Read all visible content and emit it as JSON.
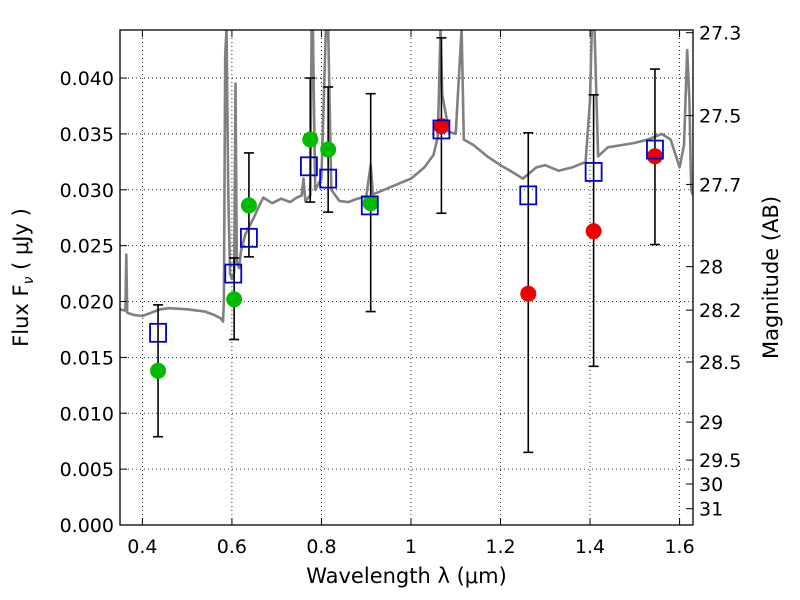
{
  "chart_data": {
    "type": "scatter",
    "xlabel": "Wavelength  λ (μm)",
    "ylabel_left": "Flux  F",
    "ylabel_left_sub": "ν",
    "ylabel_left_unit": "  ( μJy )",
    "ylabel_right": "Magnitude (AB)",
    "xlim": [
      0.35,
      1.63
    ],
    "ylim": [
      0.0,
      0.0443
    ],
    "grid": true,
    "x_ticks": [
      0.4,
      0.6,
      0.8,
      1.0,
      1.2,
      1.4,
      1.6
    ],
    "x_tick_labels": [
      "0.4",
      "0.6",
      "0.8",
      "1",
      "1.2",
      "1.4",
      "1.6"
    ],
    "y_ticks": [
      0.0,
      0.005,
      0.01,
      0.015,
      0.02,
      0.025,
      0.03,
      0.035,
      0.04
    ],
    "y_tick_labels": [
      "0.000",
      "0.005",
      "0.010",
      "0.015",
      "0.020",
      "0.025",
      "0.030",
      "0.035",
      "0.040"
    ],
    "right_ticks": [
      {
        "label": "27.3",
        "flux": 0.04406
      },
      {
        "label": "27.5",
        "flux": 0.03664
      },
      {
        "label": "27.7",
        "flux": 0.03048
      },
      {
        "label": "28",
        "flux": 0.02312
      },
      {
        "label": "28.2",
        "flux": 0.01923
      },
      {
        "label": "28.5",
        "flux": 0.01459
      },
      {
        "label": "29",
        "flux": 0.00921
      },
      {
        "label": "29.5",
        "flux": 0.00581
      },
      {
        "label": "30",
        "flux": 0.00367
      },
      {
        "label": "31",
        "flux": 0.00146
      }
    ],
    "colors": {
      "spectrum": "#808080",
      "model_squares": "#0000cc",
      "green_points": "#00bb00",
      "red_points": "#ee0000",
      "errorbars": "#000000"
    },
    "spectrum": [
      [
        0.35,
        0.0193
      ],
      [
        0.36,
        0.0192
      ],
      [
        0.362,
        0.0192
      ],
      [
        0.364,
        0.0242
      ],
      [
        0.366,
        0.019
      ],
      [
        0.38,
        0.0188
      ],
      [
        0.4,
        0.0187
      ],
      [
        0.42,
        0.019
      ],
      [
        0.44,
        0.0193
      ],
      [
        0.46,
        0.0194
      ],
      [
        0.5,
        0.0193
      ],
      [
        0.54,
        0.0191
      ],
      [
        0.56,
        0.0188
      ],
      [
        0.575,
        0.0185
      ],
      [
        0.58,
        0.0182
      ],
      [
        0.582,
        0.02
      ],
      [
        0.585,
        0.042
      ],
      [
        0.588,
        0.0444
      ],
      [
        0.592,
        0.0295
      ],
      [
        0.596,
        0.0225
      ],
      [
        0.6,
        0.022
      ],
      [
        0.605,
        0.0226
      ],
      [
        0.608,
        0.0395
      ],
      [
        0.611,
        0.0235
      ],
      [
        0.616,
        0.023
      ],
      [
        0.62,
        0.0245
      ],
      [
        0.63,
        0.026
      ],
      [
        0.64,
        0.0268
      ],
      [
        0.65,
        0.0276
      ],
      [
        0.66,
        0.0285
      ],
      [
        0.67,
        0.0293
      ],
      [
        0.69,
        0.0288
      ],
      [
        0.71,
        0.0292
      ],
      [
        0.73,
        0.0289
      ],
      [
        0.745,
        0.0293
      ],
      [
        0.756,
        0.0295
      ],
      [
        0.76,
        0.031
      ],
      [
        0.764,
        0.029
      ],
      [
        0.775,
        0.0295
      ],
      [
        0.778,
        0.0444
      ],
      [
        0.781,
        0.0444
      ],
      [
        0.786,
        0.03
      ],
      [
        0.8,
        0.031
      ],
      [
        0.81,
        0.0444
      ],
      [
        0.815,
        0.0444
      ],
      [
        0.822,
        0.03
      ],
      [
        0.84,
        0.029
      ],
      [
        0.86,
        0.0289
      ],
      [
        0.88,
        0.0292
      ],
      [
        0.9,
        0.0294
      ],
      [
        0.91,
        0.0322
      ],
      [
        0.915,
        0.0296
      ],
      [
        0.94,
        0.03
      ],
      [
        0.97,
        0.0305
      ],
      [
        1.0,
        0.031
      ],
      [
        1.03,
        0.032
      ],
      [
        1.05,
        0.0331
      ],
      [
        1.06,
        0.0347
      ],
      [
        1.066,
        0.0444
      ],
      [
        1.07,
        0.0385
      ],
      [
        1.085,
        0.0352
      ],
      [
        1.1,
        0.035
      ],
      [
        1.113,
        0.0444
      ],
      [
        1.118,
        0.0345
      ],
      [
        1.14,
        0.034
      ],
      [
        1.17,
        0.033
      ],
      [
        1.2,
        0.0322
      ],
      [
        1.23,
        0.0315
      ],
      [
        1.25,
        0.031
      ],
      [
        1.28,
        0.032
      ],
      [
        1.3,
        0.0322
      ],
      [
        1.33,
        0.0317
      ],
      [
        1.36,
        0.032
      ],
      [
        1.39,
        0.0325
      ],
      [
        1.4,
        0.038
      ],
      [
        1.404,
        0.0444
      ],
      [
        1.41,
        0.0444
      ],
      [
        1.418,
        0.033
      ],
      [
        1.44,
        0.0338
      ],
      [
        1.47,
        0.034
      ],
      [
        1.5,
        0.0342
      ],
      [
        1.53,
        0.0345
      ],
      [
        1.56,
        0.035
      ],
      [
        1.58,
        0.0345
      ],
      [
        1.6,
        0.032
      ],
      [
        1.61,
        0.034
      ],
      [
        1.617,
        0.0425
      ],
      [
        1.622,
        0.038
      ],
      [
        1.626,
        0.03
      ],
      [
        1.63,
        0.0295
      ]
    ],
    "model_squares": [
      [
        0.435,
        0.0172
      ],
      [
        0.603,
        0.0225
      ],
      [
        0.638,
        0.0257
      ],
      [
        0.772,
        0.0321
      ],
      [
        0.815,
        0.031
      ],
      [
        0.908,
        0.0286
      ],
      [
        1.068,
        0.0354
      ],
      [
        1.262,
        0.0295
      ],
      [
        1.408,
        0.0316
      ],
      [
        1.545,
        0.0336
      ]
    ],
    "green_points": [
      {
        "x": 0.435,
        "y": 0.0138,
        "lo": 0.0079,
        "hi": 0.0197
      },
      {
        "x": 0.605,
        "y": 0.0202,
        "lo": 0.0166,
        "hi": 0.0239
      },
      {
        "x": 0.638,
        "y": 0.0286,
        "lo": 0.024,
        "hi": 0.0333
      },
      {
        "x": 0.775,
        "y": 0.0345,
        "lo": 0.0289,
        "hi": 0.04
      },
      {
        "x": 0.815,
        "y": 0.0336,
        "lo": 0.028,
        "hi": 0.0392
      },
      {
        "x": 0.91,
        "y": 0.0288,
        "lo": 0.0191,
        "hi": 0.0386
      }
    ],
    "red_points": [
      {
        "x": 1.068,
        "y": 0.0357,
        "lo": 0.0279,
        "hi": 0.0436
      },
      {
        "x": 1.262,
        "y": 0.0207,
        "lo": 0.0065,
        "hi": 0.0351
      },
      {
        "x": 1.408,
        "y": 0.0263,
        "lo": 0.0142,
        "hi": 0.0385
      },
      {
        "x": 1.545,
        "y": 0.033,
        "lo": 0.0251,
        "hi": 0.0408
      }
    ]
  }
}
